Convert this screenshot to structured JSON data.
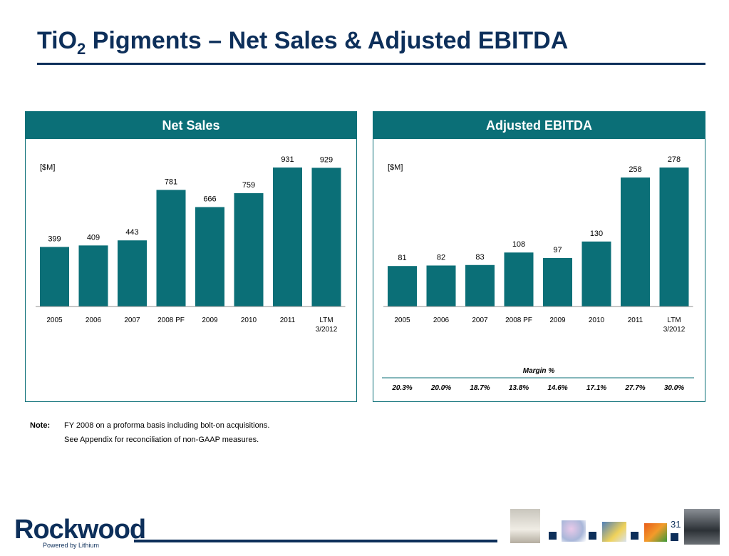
{
  "title": {
    "main": "TiO",
    "sub": "2",
    "rest": " Pigments – Net Sales & Adjusted EBITDA"
  },
  "colors": {
    "navy": "#0d2f5a",
    "teal": "#0b6f77"
  },
  "chart_data": [
    {
      "type": "bar",
      "title": "Net Sales",
      "unit_label": "[$M]",
      "categories": [
        "2005",
        "2006",
        "2007",
        "2008 PF",
        "2009",
        "2010",
        "2011",
        "LTM\n3/2012"
      ],
      "values": [
        399,
        409,
        443,
        781,
        666,
        759,
        931,
        929
      ],
      "ylim": [
        0,
        931
      ],
      "grid": false,
      "legend": "none"
    },
    {
      "type": "bar",
      "title": "Adjusted EBITDA",
      "unit_label": "[$M]",
      "categories": [
        "2005",
        "2006",
        "2007",
        "2008 PF",
        "2009",
        "2010",
        "2011",
        "LTM\n3/2012"
      ],
      "values": [
        81,
        82,
        83,
        108,
        97,
        130,
        258,
        278
      ],
      "ylim": [
        0,
        278
      ],
      "grid": false,
      "legend": "none",
      "margin_title": "Margin %",
      "margins": [
        "20.3%",
        "20.0%",
        "18.7%",
        "13.8%",
        "14.6%",
        "17.1%",
        "27.7%",
        "30.0%"
      ]
    }
  ],
  "note": {
    "label": "Note:",
    "lines": [
      "FY 2008 on a proforma basis including bolt-on acquisitions.",
      "See Appendix for reconciliation of non-GAAP measures."
    ]
  },
  "logo": {
    "name": "Rockwood",
    "tagline": "Powered by Lithium"
  },
  "page_number": "31"
}
